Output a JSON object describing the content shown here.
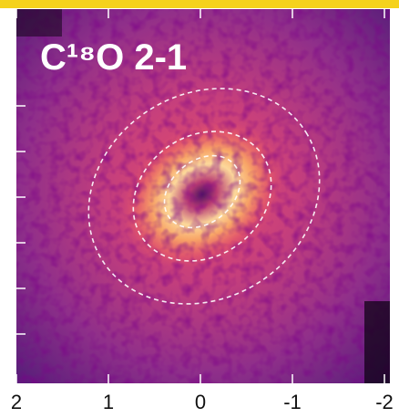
{
  "chart_data": {
    "type": "image",
    "title": "C¹⁸O 2-1",
    "xlim": [
      2,
      -2
    ],
    "xticks": [
      2,
      1,
      0,
      -1,
      -2
    ]
  }
}
